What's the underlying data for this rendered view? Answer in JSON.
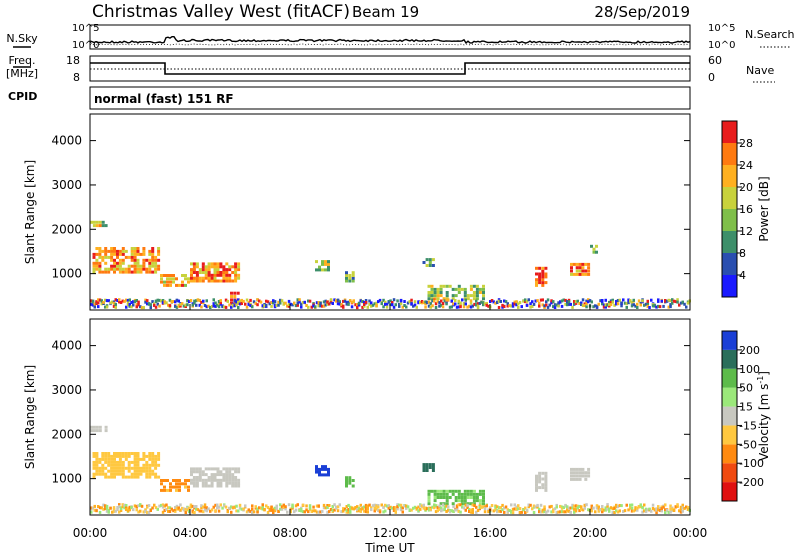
{
  "header": {
    "title": "Christmas Valley West (fitACF)",
    "beam": "Beam 19",
    "date": "28/Sep/2019"
  },
  "noise_panel": {
    "left_label": "N.Sky",
    "right_label": "N.Search",
    "left_ticks": [
      "10^5",
      "10^0"
    ],
    "right_ticks": [
      "10^5",
      "10^0"
    ]
  },
  "freq_panel": {
    "left_label_1": "Freq.",
    "left_label_2": "[MHz]",
    "right_label": "Nave",
    "left_ticks": [
      "18",
      "8"
    ],
    "right_ticks": [
      "60",
      "0"
    ]
  },
  "cpid": {
    "label": "CPID",
    "mode": "normal (fast) 151 RF"
  },
  "chart_data": [
    {
      "type": "heatmap",
      "name": "power",
      "ylabel": "Slant Range [km]",
      "xlabel": "",
      "y_ticks": [
        "4000",
        "3000",
        "2000",
        "1000"
      ],
      "y_tick_values": [
        4000,
        3000,
        2000,
        1000
      ],
      "ylim": [
        180,
        4600
      ],
      "colorbar": {
        "label": "Power [dB]",
        "tick_labels": [
          "28",
          "24",
          "20",
          "16",
          "12",
          "8",
          "4"
        ],
        "tick_values": [
          28,
          24,
          20,
          16,
          12,
          8,
          4
        ],
        "range": [
          0,
          32
        ],
        "colors": [
          "#1a1aff",
          "#2a4fb0",
          "#3d8f6a",
          "#7fbf4a",
          "#c8d23c",
          "#ffb020",
          "#ff7a10",
          "#e81c1c"
        ]
      },
      "echo_regions": [
        {
          "t_start": 0.0,
          "t_end": 0.7,
          "range_min": 2050,
          "range_max": 2200,
          "level": 0.55
        },
        {
          "t_start": 0.1,
          "t_end": 2.8,
          "range_min": 1000,
          "range_max": 1600,
          "level": 0.75
        },
        {
          "t_start": 2.8,
          "t_end": 4.0,
          "range_min": 700,
          "range_max": 1000,
          "level": 0.7
        },
        {
          "t_start": 4.0,
          "t_end": 6.0,
          "range_min": 800,
          "range_max": 1250,
          "level": 0.8
        },
        {
          "t_start": 5.6,
          "t_end": 6.0,
          "range_min": 300,
          "range_max": 600,
          "level": 0.9
        },
        {
          "t_start": 9.0,
          "t_end": 9.6,
          "range_min": 1050,
          "range_max": 1300,
          "level": 0.5
        },
        {
          "t_start": 10.2,
          "t_end": 10.6,
          "range_min": 800,
          "range_max": 1050,
          "level": 0.4
        },
        {
          "t_start": 13.3,
          "t_end": 13.8,
          "range_min": 1150,
          "range_max": 1350,
          "level": 0.35
        },
        {
          "t_start": 13.5,
          "t_end": 15.8,
          "range_min": 400,
          "range_max": 750,
          "level": 0.45
        },
        {
          "t_start": 17.8,
          "t_end": 18.3,
          "range_min": 700,
          "range_max": 1150,
          "level": 0.95
        },
        {
          "t_start": 19.2,
          "t_end": 20.0,
          "range_min": 950,
          "range_max": 1250,
          "level": 0.8
        },
        {
          "t_start": 20.0,
          "t_end": 20.3,
          "range_min": 1450,
          "range_max": 1650,
          "level": 0.4
        }
      ]
    },
    {
      "type": "heatmap",
      "name": "velocity",
      "ylabel": "Slant Range [km]",
      "xlabel": "Time UT",
      "x_ticks": [
        "00:00",
        "04:00",
        "08:00",
        "12:00",
        "16:00",
        "20:00",
        "00:00"
      ],
      "x_tick_values": [
        0,
        4,
        8,
        12,
        16,
        20,
        24
      ],
      "xlim": [
        0,
        24
      ],
      "y_ticks": [
        "4000",
        "3000",
        "2000",
        "1000"
      ],
      "y_tick_values": [
        4000,
        3000,
        2000,
        1000
      ],
      "ylim": [
        180,
        4600
      ],
      "colorbar": {
        "label_main": "Velocity [m s",
        "label_sup": "-1",
        "label_close": "]",
        "tick_labels": [
          "200",
          "100",
          "50",
          "15",
          "-15",
          "-50",
          "-100",
          "-200"
        ],
        "tick_values": [
          200,
          100,
          50,
          15,
          -15,
          -50,
          -100,
          -200
        ],
        "colors": [
          "#1a3fd6",
          "#2a6e5a",
          "#5dbb4a",
          "#9be87a",
          "#c8c8c0",
          "#ffc840",
          "#ff8a10",
          "#f04a10",
          "#e01010"
        ]
      },
      "echo_regions": [
        {
          "t_start": 0.0,
          "t_end": 0.7,
          "range_min": 2050,
          "range_max": 2200,
          "v": 0
        },
        {
          "t_start": 0.1,
          "t_end": 2.8,
          "range_min": 1000,
          "range_max": 1600,
          "v": -30
        },
        {
          "t_start": 2.8,
          "t_end": 4.0,
          "range_min": 700,
          "range_max": 1000,
          "v": -60
        },
        {
          "t_start": 4.0,
          "t_end": 6.0,
          "range_min": 800,
          "range_max": 1250,
          "v": 0
        },
        {
          "t_start": 9.0,
          "t_end": 9.6,
          "range_min": 1050,
          "range_max": 1300,
          "v": 200
        },
        {
          "t_start": 10.2,
          "t_end": 10.6,
          "range_min": 800,
          "range_max": 1050,
          "v": 60
        },
        {
          "t_start": 13.3,
          "t_end": 13.8,
          "range_min": 1150,
          "range_max": 1350,
          "v": 100
        },
        {
          "t_start": 13.5,
          "t_end": 15.8,
          "range_min": 400,
          "range_max": 750,
          "v": 40
        },
        {
          "t_start": 17.8,
          "t_end": 18.3,
          "range_min": 700,
          "range_max": 1150,
          "v": 0
        },
        {
          "t_start": 19.2,
          "t_end": 20.0,
          "range_min": 950,
          "range_max": 1250,
          "v": 0
        }
      ]
    }
  ]
}
